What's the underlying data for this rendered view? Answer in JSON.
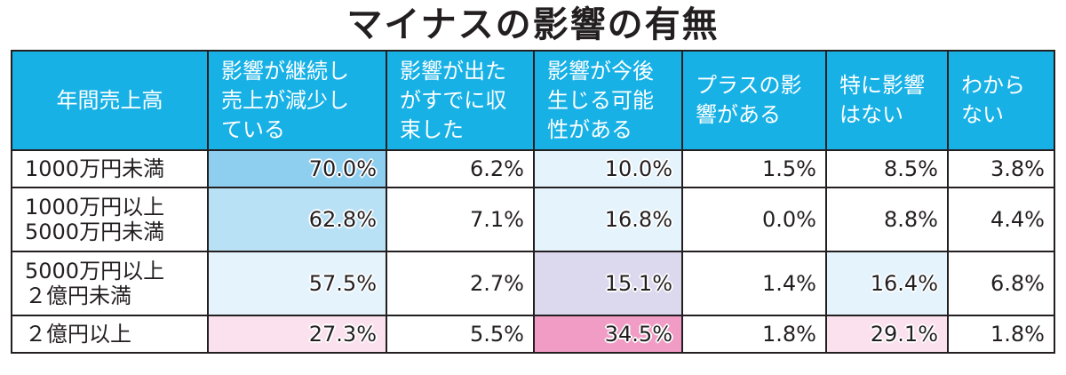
{
  "title": "マイナスの影響の有無",
  "colors": {
    "header_bg": "#17b1e6",
    "blue_strong": "#8ecff0",
    "blue_medium": "#b9e1f6",
    "blue_light": "#e4f3fc",
    "lavender": "#dcd9ee",
    "pink_strong": "#f09cc4",
    "pink_light": "#fbe1ee"
  },
  "chart_data": {
    "type": "table",
    "title": "マイナスの影響の有無",
    "row_header_label": "年間売上高",
    "columns": [
      "影響が継続し売上が減少している",
      "影響が出たがすでに収束した",
      "影響が今後生じる可能性がある",
      "プラスの影響がある",
      "特に影響はない",
      "わからない"
    ],
    "column_lines": [
      [
        "影響が継続し",
        "売上が減少し",
        "ている"
      ],
      [
        "影響が出た",
        "がすでに収",
        "束した"
      ],
      [
        "影響が今後",
        "生じる可能",
        "性がある"
      ],
      [
        "プラスの影",
        "響がある"
      ],
      [
        "特に影響",
        "はない"
      ],
      [
        "わから",
        "ない"
      ]
    ],
    "rows": [
      {
        "label": "1000万円未満",
        "label_lines": [
          "1000万円未満"
        ],
        "values": [
          "70.0%",
          "6.2%",
          "10.0%",
          "1.5%",
          "8.5%",
          "3.8%"
        ],
        "shade": [
          "blue_strong",
          null,
          "blue_light",
          null,
          null,
          null
        ]
      },
      {
        "label": "1000万円以上5000万円未満",
        "label_lines": [
          "1000万円以上",
          "5000万円未満"
        ],
        "values": [
          "62.8%",
          "7.1%",
          "16.8%",
          "0.0%",
          "8.8%",
          "4.4%"
        ],
        "shade": [
          "blue_medium",
          null,
          "blue_light",
          null,
          null,
          null
        ]
      },
      {
        "label": "5000万円以上２億円未満",
        "label_lines": [
          "5000万円以上",
          "２億円未満"
        ],
        "values": [
          "57.5%",
          "2.7%",
          "15.1%",
          "1.4%",
          "16.4%",
          "6.8%"
        ],
        "shade": [
          "blue_light",
          null,
          "lavender",
          null,
          "blue_light",
          null
        ]
      },
      {
        "label": "２億円以上",
        "label_lines": [
          "２億円以上"
        ],
        "values": [
          "27.3%",
          "5.5%",
          "34.5%",
          "1.8%",
          "29.1%",
          "1.8%"
        ],
        "shade": [
          "pink_light",
          null,
          "pink_strong",
          null,
          "pink_light",
          null
        ]
      }
    ]
  }
}
